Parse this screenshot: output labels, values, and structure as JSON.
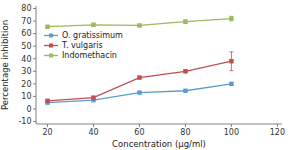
{
  "chart_data": {
    "type": "line",
    "x": [
      20,
      40,
      60,
      80,
      100
    ],
    "series": [
      {
        "name": "O. gratissimum",
        "color": "#5B9BD5",
        "values": [
          5.0,
          7.0,
          13.0,
          14.5,
          20.0
        ],
        "errors": [
          0.4,
          0.4,
          0.5,
          0.5,
          0.8
        ]
      },
      {
        "name": "T. vulgaris",
        "color": "#C0504D",
        "values": [
          6.5,
          9.0,
          25.0,
          30.0,
          38.0
        ],
        "errors": [
          0.8,
          1.0,
          1.0,
          1.2,
          7.5
        ]
      },
      {
        "name": "Indomethacin",
        "color": "#9BBB59",
        "values": [
          65.5,
          67.0,
          66.5,
          69.5,
          72.0
        ],
        "errors": [
          1.0,
          1.2,
          0.5,
          1.5,
          1.8
        ]
      }
    ],
    "xlabel": "Concentration (μg/ml)",
    "ylabel": "Percentage inhibition",
    "xlim": [
      15,
      122
    ],
    "ylim": [
      -12,
      82
    ],
    "xticks": [
      20,
      40,
      60,
      80,
      100,
      120
    ],
    "yticks": [
      -10,
      0,
      10,
      20,
      30,
      40,
      50,
      60,
      70,
      80
    ],
    "marker": "square",
    "line_style": "solid",
    "legend": "upper left",
    "grid": false
  }
}
